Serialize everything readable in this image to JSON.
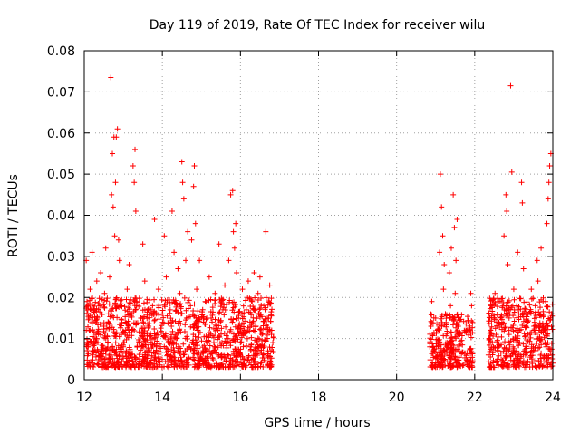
{
  "chart_data": {
    "type": "scatter",
    "title": "Day 119 of 2019, Rate Of TEC Index for receiver wilu",
    "xlabel": "GPS time / hours",
    "ylabel": "ROTI / TECUs",
    "xlim": [
      12,
      24
    ],
    "ylim": [
      0,
      0.08
    ],
    "x_ticks": [
      12,
      14,
      16,
      18,
      20,
      22,
      24
    ],
    "y_ticks": [
      0,
      0.01,
      0.02,
      0.03,
      0.04,
      0.05,
      0.06,
      0.07,
      0.08
    ],
    "x_tick_labels": [
      "12",
      "14",
      "16",
      "18",
      "20",
      "22",
      "24"
    ],
    "y_tick_labels": [
      "0",
      "0.01",
      "0.02",
      "0.03",
      "0.04",
      "0.05",
      "0.06",
      "0.07",
      "0.08"
    ],
    "grid": true,
    "marker": "+",
    "marker_color": "#ff0000",
    "series": [
      {
        "name": "ROTI",
        "points": [
          [
            12.05,
            0.012
          ],
          [
            12.05,
            0.029
          ],
          [
            12.07,
            0.019
          ],
          [
            12.1,
            0.008
          ],
          [
            12.12,
            0.015
          ],
          [
            12.15,
            0.022
          ],
          [
            12.2,
            0.031
          ],
          [
            12.22,
            0.006
          ],
          [
            12.25,
            0.017
          ],
          [
            12.3,
            0.011
          ],
          [
            12.32,
            0.024
          ],
          [
            12.35,
            0.009
          ],
          [
            12.4,
            0.018
          ],
          [
            12.42,
            0.026
          ],
          [
            12.45,
            0.007
          ],
          [
            12.5,
            0.013
          ],
          [
            12.52,
            0.021
          ],
          [
            12.55,
            0.032
          ],
          [
            12.6,
            0.009
          ],
          [
            12.62,
            0.016
          ],
          [
            12.65,
            0.025
          ],
          [
            12.68,
            0.0735
          ],
          [
            12.7,
            0.045
          ],
          [
            12.72,
            0.055
          ],
          [
            12.74,
            0.042
          ],
          [
            12.76,
            0.059
          ],
          [
            12.78,
            0.035
          ],
          [
            12.8,
            0.048
          ],
          [
            12.82,
            0.059
          ],
          [
            12.85,
            0.061
          ],
          [
            12.88,
            0.034
          ],
          [
            12.9,
            0.029
          ],
          [
            12.92,
            0.018
          ],
          [
            12.95,
            0.011
          ],
          [
            13.0,
            0.008
          ],
          [
            13.05,
            0.014
          ],
          [
            13.1,
            0.022
          ],
          [
            13.15,
            0.028
          ],
          [
            13.2,
            0.006
          ],
          [
            13.22,
            0.012
          ],
          [
            13.25,
            0.052
          ],
          [
            13.28,
            0.048
          ],
          [
            13.3,
            0.056
          ],
          [
            13.32,
            0.041
          ],
          [
            13.35,
            0.019
          ],
          [
            13.4,
            0.009
          ],
          [
            13.45,
            0.015
          ],
          [
            13.5,
            0.033
          ],
          [
            13.55,
            0.024
          ],
          [
            13.6,
            0.007
          ],
          [
            13.65,
            0.013
          ],
          [
            13.7,
            0.004
          ],
          [
            13.75,
            0.018
          ],
          [
            13.8,
            0.039
          ],
          [
            13.85,
            0.011
          ],
          [
            13.9,
            0.022
          ],
          [
            13.95,
            0.008
          ],
          [
            14.0,
            0.016
          ],
          [
            14.05,
            0.035
          ],
          [
            14.1,
            0.025
          ],
          [
            14.15,
            0.009
          ],
          [
            14.2,
            0.017
          ],
          [
            14.25,
            0.041
          ],
          [
            14.3,
            0.031
          ],
          [
            14.35,
            0.011
          ],
          [
            14.4,
            0.027
          ],
          [
            14.45,
            0.021
          ],
          [
            14.5,
            0.053
          ],
          [
            14.52,
            0.048
          ],
          [
            14.55,
            0.044
          ],
          [
            14.6,
            0.029
          ],
          [
            14.62,
            0.015
          ],
          [
            14.65,
            0.036
          ],
          [
            14.7,
            0.008
          ],
          [
            14.72,
            0.018
          ],
          [
            14.75,
            0.034
          ],
          [
            14.8,
            0.047
          ],
          [
            14.82,
            0.052
          ],
          [
            14.85,
            0.038
          ],
          [
            14.88,
            0.022
          ],
          [
            14.9,
            0.012
          ],
          [
            14.95,
            0.029
          ],
          [
            15.0,
            0.005
          ],
          [
            15.05,
            0.014
          ],
          [
            15.1,
            0.019
          ],
          [
            15.15,
            0.009
          ],
          [
            15.2,
            0.025
          ],
          [
            15.25,
            0.015
          ],
          [
            15.3,
            0.007
          ],
          [
            15.35,
            0.021
          ],
          [
            15.4,
            0.012
          ],
          [
            15.45,
            0.033
          ],
          [
            15.5,
            0.006
          ],
          [
            15.55,
            0.017
          ],
          [
            15.6,
            0.023
          ],
          [
            15.65,
            0.01
          ],
          [
            15.7,
            0.029
          ],
          [
            15.75,
            0.045
          ],
          [
            15.8,
            0.046
          ],
          [
            15.82,
            0.036
          ],
          [
            15.85,
            0.032
          ],
          [
            15.88,
            0.038
          ],
          [
            15.9,
            0.026
          ],
          [
            15.95,
            0.015
          ],
          [
            16.0,
            0.009
          ],
          [
            16.05,
            0.022
          ],
          [
            16.1,
            0.012
          ],
          [
            16.15,
            0.017
          ],
          [
            16.2,
            0.024
          ],
          [
            16.25,
            0.008
          ],
          [
            16.3,
            0.019
          ],
          [
            16.35,
            0.026
          ],
          [
            16.4,
            0.013
          ],
          [
            16.45,
            0.021
          ],
          [
            16.5,
            0.025
          ],
          [
            16.55,
            0.011
          ],
          [
            16.6,
            0.018
          ],
          [
            16.65,
            0.036
          ],
          [
            16.7,
            0.007
          ],
          [
            16.72,
            0.015
          ],
          [
            16.75,
            0.023
          ],
          [
            16.8,
            0.012
          ],
          [
            16.83,
            0.009
          ],
          [
            20.85,
            0.008
          ],
          [
            20.88,
            0.013
          ],
          [
            20.9,
            0.019
          ],
          [
            20.92,
            0.011
          ],
          [
            20.95,
            0.007
          ],
          [
            21.0,
            0.015
          ],
          [
            21.05,
            0.012
          ],
          [
            21.1,
            0.031
          ],
          [
            21.12,
            0.05
          ],
          [
            21.15,
            0.042
          ],
          [
            21.18,
            0.035
          ],
          [
            21.2,
            0.022
          ],
          [
            21.22,
            0.028
          ],
          [
            21.25,
            0.016
          ],
          [
            21.3,
            0.009
          ],
          [
            21.35,
            0.026
          ],
          [
            21.38,
            0.018
          ],
          [
            21.4,
            0.032
          ],
          [
            21.45,
            0.045
          ],
          [
            21.48,
            0.037
          ],
          [
            21.5,
            0.021
          ],
          [
            21.52,
            0.029
          ],
          [
            21.55,
            0.039
          ],
          [
            21.58,
            0.013
          ],
          [
            21.6,
            0.007
          ],
          [
            21.62,
            0.011
          ],
          [
            21.8,
            0.004
          ],
          [
            21.85,
            0.012
          ],
          [
            21.9,
            0.021
          ],
          [
            21.92,
            0.018
          ],
          [
            22.35,
            0.006
          ],
          [
            22.4,
            0.012
          ],
          [
            22.42,
            0.018
          ],
          [
            22.45,
            0.009
          ],
          [
            22.5,
            0.015
          ],
          [
            22.52,
            0.021
          ],
          [
            22.55,
            0.011
          ],
          [
            22.6,
            0.007
          ],
          [
            22.65,
            0.019
          ],
          [
            22.7,
            0.014
          ],
          [
            22.75,
            0.035
          ],
          [
            22.8,
            0.045
          ],
          [
            22.82,
            0.041
          ],
          [
            22.85,
            0.028
          ],
          [
            22.88,
            0.011
          ],
          [
            22.9,
            0.016
          ],
          [
            22.92,
            0.0715
          ],
          [
            22.95,
            0.0505
          ],
          [
            23.0,
            0.022
          ],
          [
            23.05,
            0.012
          ],
          [
            23.1,
            0.031
          ],
          [
            23.12,
            0.017
          ],
          [
            23.15,
            0.009
          ],
          [
            23.2,
            0.048
          ],
          [
            23.22,
            0.043
          ],
          [
            23.25,
            0.027
          ],
          [
            23.3,
            0.006
          ],
          [
            23.35,
            0.014
          ],
          [
            23.4,
            0.011
          ],
          [
            23.45,
            0.022
          ],
          [
            23.5,
            0.008
          ],
          [
            23.55,
            0.018
          ],
          [
            23.6,
            0.029
          ],
          [
            23.62,
            0.024
          ],
          [
            23.65,
            0.012
          ],
          [
            23.7,
            0.032
          ],
          [
            23.75,
            0.019
          ],
          [
            23.8,
            0.009
          ],
          [
            23.85,
            0.038
          ],
          [
            23.88,
            0.044
          ],
          [
            23.9,
            0.048
          ],
          [
            23.92,
            0.052
          ],
          [
            23.95,
            0.055
          ],
          [
            23.97,
            0.016
          ],
          [
            23.98,
            0.006
          ]
        ],
        "dense_bands": [
          {
            "x_from": 12.05,
            "x_to": 16.85,
            "y_min": 0.003,
            "y_max": 0.02
          },
          {
            "x_from": 20.85,
            "x_to": 21.95,
            "y_min": 0.003,
            "y_max": 0.016
          },
          {
            "x_from": 22.35,
            "x_to": 24.0,
            "y_min": 0.003,
            "y_max": 0.02
          }
        ]
      }
    ]
  }
}
